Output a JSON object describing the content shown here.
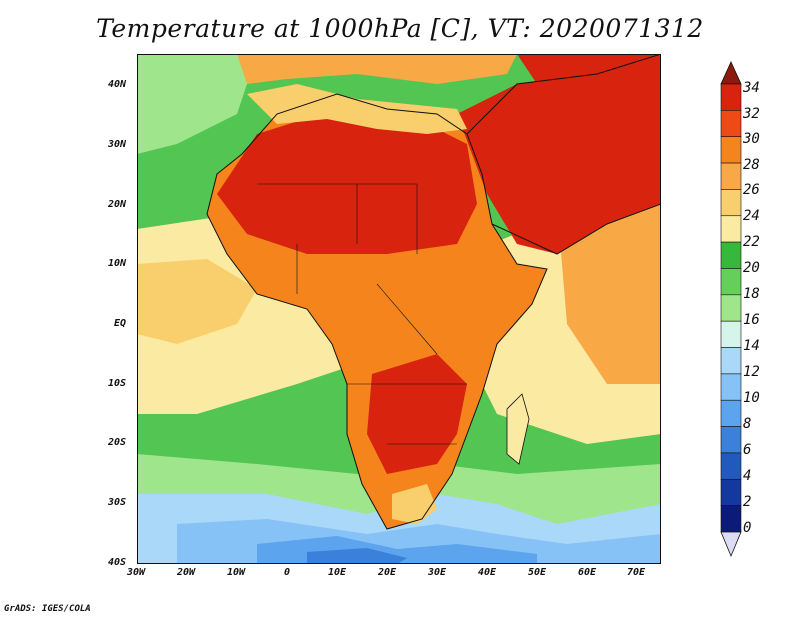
{
  "title": "Temperature at 1000hPa [C], VT: 2020071312",
  "credit": "GrADS: IGES/COLA",
  "map": {
    "region": "Africa and Middle East",
    "variable": "Temperature at 1000hPa",
    "units": "C",
    "valid_time": "2020071312",
    "lon_labels": [
      "30W",
      "20W",
      "10W",
      "0",
      "10E",
      "20E",
      "30E",
      "40E",
      "50E",
      "60E",
      "70E"
    ],
    "lat_labels": [
      "40N",
      "30N",
      "20N",
      "10N",
      "EQ",
      "10S",
      "20S",
      "30S",
      "40S"
    ]
  },
  "colorbar": {
    "labels": [
      "34",
      "32",
      "30",
      "28",
      "26",
      "24",
      "22",
      "20",
      "18",
      "16",
      "14",
      "12",
      "10",
      "8",
      "6",
      "4",
      "2",
      "0"
    ],
    "colors": [
      "#8b1a0a",
      "#d8230f",
      "#ee4a18",
      "#f5841c",
      "#f8a946",
      "#f8cf6c",
      "#fbeaa2",
      "#36b83c",
      "#66cf5c",
      "#9ee58c",
      "#d5f5ea",
      "#a9d8f9",
      "#86c2f6",
      "#5da4ee",
      "#3b80da",
      "#2259bf",
      "#1339a0",
      "#0d1b78",
      "#dcdcf4"
    ]
  },
  "colors": {
    "ocean": "#52c552",
    "land_hot": "#d8230f",
    "border": "#111111"
  }
}
